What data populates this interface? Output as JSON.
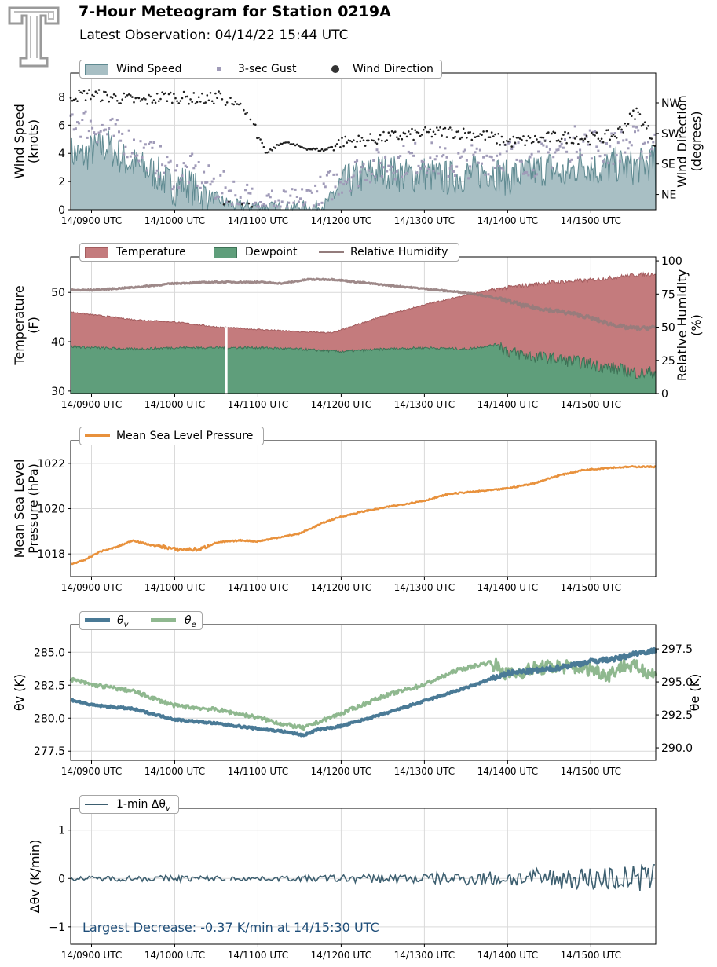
{
  "header": {
    "title": "7-Hour Meteogram for Station 0219A",
    "subtitle": "Latest Observation: 04/14/22 15:44 UTC"
  },
  "time_ticks": [
    "14/0900 UTC",
    "14/1000 UTC",
    "14/1100 UTC",
    "14/1200 UTC",
    "14/1300 UTC",
    "14/1400 UTC",
    "14/1500 UTC"
  ],
  "colors": {
    "wind_fill": "#a8bfc4",
    "wind_edge": "#5f8a91",
    "gust": "#a09bb8",
    "direction": "#1f1f1f",
    "temperature": "#c47b7d",
    "temperature_edge": "#a35c5e",
    "dewpoint": "#5f9e7b",
    "dewpoint_edge": "#3d7256",
    "rh": "#937c7c",
    "pressure": "#e8913c",
    "theta_v": "#4a7a96",
    "theta_e": "#8fb88f",
    "dthv": "#3d5f70",
    "annotation": "#1f4e79"
  },
  "chart_data": [
    {
      "type": "area",
      "id": "wind",
      "ylabel": "Wind Speed\n(knots)",
      "y2label": "Wind Direction\n(degrees)",
      "ylim": [
        0,
        9.7
      ],
      "yticks": [
        0,
        2,
        4,
        6,
        8
      ],
      "y2lim": [
        0,
        403
      ],
      "y2ticks": [
        {
          "value": 45,
          "label": "NE"
        },
        {
          "value": 135,
          "label": "SE"
        },
        {
          "value": 225,
          "label": "SW"
        },
        {
          "value": 315,
          "label": "NW"
        }
      ],
      "xlim_hours": [
        8.75,
        15.78
      ],
      "grid": true,
      "legend": {
        "placement": "top-left, above plot",
        "entries": [
          "Wind Speed",
          "3-sec Gust",
          "Wind Direction"
        ]
      },
      "series": [
        {
          "name": "Wind Speed",
          "kind": "area",
          "x_hours": [
            8.75,
            8.9,
            9.0,
            9.2,
            9.4,
            9.6,
            9.8,
            10.0,
            10.1,
            10.3,
            10.5,
            10.6,
            10.8,
            11.0,
            11.2,
            11.5,
            11.6,
            11.8,
            12.0,
            12.2,
            12.5,
            12.8,
            13.0,
            13.2,
            13.5,
            13.8,
            14.0,
            14.2,
            14.5,
            14.7,
            14.9,
            15.1,
            15.3,
            15.5,
            15.7,
            15.78
          ],
          "values": [
            4.0,
            3.8,
            4.2,
            4.5,
            3.5,
            3.0,
            2.5,
            1.5,
            2.0,
            1.2,
            0.8,
            0.5,
            0.2,
            0.3,
            0.1,
            0.2,
            0.1,
            0.3,
            1.8,
            2.3,
            2.8,
            2.4,
            2.6,
            2.2,
            2.5,
            2.8,
            2.2,
            2.6,
            3.0,
            2.4,
            3.4,
            2.8,
            3.2,
            3.0,
            3.3,
            3.5
          ]
        },
        {
          "name": "3-sec Gust",
          "kind": "scatter",
          "x_hours": [
            8.75,
            9.0,
            9.2,
            9.4,
            9.6,
            9.8,
            10.0,
            10.2,
            10.4,
            10.6,
            10.8,
            11.0,
            11.5,
            12.0,
            12.3,
            12.6,
            13.0,
            13.3,
            13.6,
            14.0,
            14.3,
            14.6,
            14.9,
            15.2,
            15.5,
            15.78
          ],
          "values": [
            6.5,
            6.0,
            5.5,
            5.0,
            4.2,
            3.5,
            2.5,
            2.8,
            2.0,
            1.5,
            1.0,
            0.5,
            0.4,
            2.2,
            3.0,
            3.3,
            3.8,
            3.2,
            3.5,
            4.0,
            3.5,
            4.2,
            5.0,
            4.3,
            4.8,
            4.5
          ]
        },
        {
          "name": "Wind Direction",
          "kind": "scatter",
          "axis": "right",
          "x_hours": [
            8.75,
            9.0,
            9.3,
            9.6,
            9.9,
            10.1,
            10.4,
            10.55,
            10.7,
            10.9,
            10.95,
            11.1,
            11.3,
            11.6,
            11.8,
            12.0,
            12.3,
            12.6,
            13.0,
            13.3,
            13.7,
            14.0,
            14.3,
            14.6,
            15.0,
            15.3,
            15.55,
            15.78
          ],
          "values": [
            335,
            340,
            330,
            320,
            335,
            330,
            325,
            335,
            310,
            290,
            250,
            165,
            200,
            180,
            175,
            200,
            205,
            215,
            225,
            230,
            220,
            200,
            205,
            215,
            210,
            220,
            290,
            195
          ]
        }
      ]
    },
    {
      "type": "area",
      "id": "thermo",
      "ylabel": "Temperature\n(F)",
      "y2label": "Relative Humidity\n(%)",
      "ylim": [
        29.5,
        57.2
      ],
      "yticks": [
        30,
        40,
        50
      ],
      "y2lim": [
        0,
        103
      ],
      "y2ticks": [
        0,
        25,
        50,
        75,
        100
      ],
      "xlim_hours": [
        8.75,
        15.78
      ],
      "grid": true,
      "gap_hours": 10.62,
      "legend": {
        "placement": "top-left, above plot",
        "entries": [
          "Temperature",
          "Dewpoint",
          "Relative Humidity"
        ]
      },
      "series": [
        {
          "name": "Temperature",
          "x_hours": [
            8.75,
            9.0,
            9.5,
            10.0,
            10.5,
            11.0,
            11.5,
            11.9,
            12.2,
            12.5,
            13.0,
            13.5,
            13.8,
            14.0,
            14.5,
            15.0,
            15.5,
            15.78
          ],
          "values": [
            46.0,
            45.5,
            44.5,
            44.0,
            43.0,
            42.5,
            42.0,
            41.8,
            43.5,
            45.2,
            47.5,
            49.5,
            50.5,
            51.0,
            52.0,
            52.5,
            53.5,
            53.8
          ]
        },
        {
          "name": "Dewpoint",
          "x_hours": [
            8.75,
            9.0,
            9.5,
            10.0,
            10.5,
            11.0,
            11.5,
            12.0,
            12.5,
            13.0,
            13.5,
            13.9,
            14.0,
            14.3,
            14.6,
            15.0,
            15.3,
            15.6,
            15.78
          ],
          "values": [
            39.0,
            38.8,
            38.5,
            38.8,
            38.8,
            38.8,
            38.5,
            38.0,
            38.5,
            38.8,
            38.5,
            39.5,
            38.0,
            37.0,
            36.5,
            35.5,
            34.5,
            33.5,
            34.0
          ]
        },
        {
          "name": "Relative Humidity",
          "axis": "right",
          "x_hours": [
            8.75,
            9.0,
            9.5,
            10.0,
            10.5,
            11.0,
            11.3,
            11.6,
            11.9,
            12.2,
            12.5,
            13.0,
            13.5,
            13.7,
            14.0,
            14.2,
            14.5,
            14.8,
            15.0,
            15.2,
            15.4,
            15.6,
            15.78
          ],
          "values": [
            78,
            78,
            80,
            83,
            84,
            84,
            83,
            86,
            86,
            84,
            82,
            79,
            76,
            74,
            70,
            66,
            63,
            60,
            57,
            53,
            50,
            49,
            50
          ]
        }
      ]
    },
    {
      "type": "line",
      "id": "pressure",
      "ylabel": "Mean Sea Level\nPressure (hPa)",
      "ylim": [
        1017.0,
        1023.0
      ],
      "yticks": [
        1018,
        1020,
        1022
      ],
      "xlim_hours": [
        8.75,
        15.78
      ],
      "grid": true,
      "legend": {
        "placement": "top-left, above plot",
        "entries": [
          "Mean Sea Level Pressure"
        ]
      },
      "series": [
        {
          "name": "Mean Sea Level Pressure",
          "x_hours": [
            8.75,
            8.9,
            9.1,
            9.3,
            9.5,
            9.7,
            9.9,
            10.0,
            10.1,
            10.3,
            10.5,
            10.8,
            11.0,
            11.2,
            11.5,
            11.8,
            12.0,
            12.3,
            12.6,
            13.0,
            13.3,
            13.6,
            13.9,
            14.0,
            14.3,
            14.6,
            14.9,
            15.2,
            15.5,
            15.78
          ],
          "values": [
            1017.55,
            1017.7,
            1018.1,
            1018.3,
            1018.6,
            1018.4,
            1018.3,
            1018.2,
            1018.2,
            1018.2,
            1018.5,
            1018.6,
            1018.55,
            1018.7,
            1018.9,
            1019.4,
            1019.65,
            1019.9,
            1020.1,
            1020.35,
            1020.65,
            1020.75,
            1020.85,
            1020.9,
            1021.1,
            1021.45,
            1021.7,
            1021.8,
            1021.85,
            1021.85
          ]
        }
      ]
    },
    {
      "type": "line",
      "id": "theta",
      "ylabel": "θv (K)",
      "y2label": "θe (K)",
      "ylim": [
        276.8,
        287.1
      ],
      "yticks": [
        277.5,
        280.0,
        282.5,
        285.0
      ],
      "y2lim": [
        289.05,
        299.35
      ],
      "y2ticks": [
        290.0,
        292.5,
        295.0,
        297.5
      ],
      "xlim_hours": [
        8.75,
        15.78
      ],
      "grid": true,
      "legend": {
        "placement": "top-left, above plot",
        "entries": [
          "θv",
          "θe"
        ]
      },
      "series": [
        {
          "name": "θv",
          "x_hours": [
            8.75,
            9.0,
            9.5,
            10.0,
            10.5,
            11.0,
            11.3,
            11.55,
            11.7,
            12.0,
            12.5,
            13.0,
            13.5,
            14.0,
            14.5,
            15.0,
            15.3,
            15.6,
            15.78
          ],
          "values": [
            281.4,
            281.0,
            280.7,
            279.9,
            279.6,
            279.2,
            279.0,
            278.7,
            279.1,
            279.4,
            280.3,
            281.3,
            282.3,
            283.4,
            283.7,
            284.3,
            284.5,
            285.0,
            285.1
          ]
        },
        {
          "name": "θe",
          "axis": "right",
          "x_hours": [
            8.75,
            9.0,
            9.5,
            10.0,
            10.5,
            11.0,
            11.3,
            11.55,
            11.7,
            12.0,
            12.5,
            13.0,
            13.4,
            13.8,
            14.0,
            14.3,
            14.6,
            15.0,
            15.2,
            15.4,
            15.6,
            15.78
          ],
          "values": [
            295.2,
            294.8,
            294.3,
            293.2,
            292.9,
            292.3,
            291.8,
            291.5,
            291.9,
            292.6,
            293.9,
            294.8,
            295.9,
            296.5,
            295.5,
            296.0,
            296.2,
            296.0,
            295.5,
            296.3,
            296.0,
            295.5
          ]
        }
      ]
    },
    {
      "type": "line",
      "id": "dtheta",
      "ylabel": "Δθv (K/min)",
      "ylim": [
        -1.36,
        1.45
      ],
      "yticks": [
        -1,
        0,
        1
      ],
      "xlim_hours": [
        8.75,
        15.78
      ],
      "grid": true,
      "gap_hours": [
        10.62,
        10.66
      ],
      "legend": {
        "placement": "top-left, above plot",
        "entries": [
          "1-min Δθv"
        ]
      },
      "annotation": "Largest Decrease: -0.37 K/min at 14/15:30 UTC",
      "series": [
        {
          "name": "1-min Δθv",
          "noise_amplitude_by_hour": [
            [
              8.75,
              0.03
            ],
            [
              10.0,
              0.05
            ],
            [
              11.0,
              0.03
            ],
            [
              12.0,
              0.06
            ],
            [
              13.0,
              0.08
            ],
            [
              14.0,
              0.12
            ],
            [
              15.0,
              0.18
            ],
            [
              15.78,
              0.22
            ]
          ]
        }
      ]
    }
  ],
  "legend_labels": {
    "wind_speed": "Wind Speed",
    "gust": "3-sec Gust",
    "direction": "Wind Direction",
    "temperature": "Temperature",
    "dewpoint": "Dewpoint",
    "rh": "Relative Humidity",
    "pressure": "Mean Sea Level Pressure",
    "theta_v_base": "θ",
    "theta_v_sub": "v",
    "theta_e_base": "θ",
    "theta_e_sub": "e",
    "dthv_prefix": "1-min Δθ",
    "dthv_sub": "v"
  },
  "annotation": "Largest Decrease: -0.37 K/min at 14/15:30 UTC"
}
